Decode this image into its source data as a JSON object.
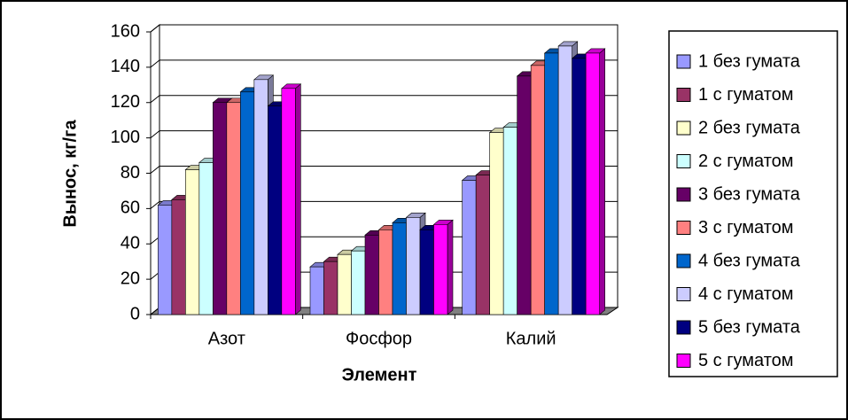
{
  "chart_data": {
    "type": "bar",
    "x_label": "Элемент",
    "y_label": "Вынос, кг/га",
    "categories": [
      "Азот",
      "Фосфор",
      "Калий"
    ],
    "series": [
      {
        "name": "1 без гумата",
        "color": "#9999ff",
        "values": [
          62,
          27,
          76
        ]
      },
      {
        "name": "1 с гуматом",
        "color": "#993366",
        "values": [
          65,
          30,
          79
        ]
      },
      {
        "name": "2 без гумата",
        "color": "#ffffcc",
        "values": [
          82,
          34,
          103
        ]
      },
      {
        "name": "2 с гуматом",
        "color": "#ccffff",
        "values": [
          86,
          36,
          106
        ]
      },
      {
        "name": "3 без гумата",
        "color": "#660066",
        "values": [
          120,
          45,
          135
        ]
      },
      {
        "name": "3 с гуматом",
        "color": "#ff8080",
        "values": [
          120,
          48,
          141
        ]
      },
      {
        "name": "4 без гумата",
        "color": "#0066cc",
        "values": [
          126,
          52,
          148
        ]
      },
      {
        "name": "4 с гуматом",
        "color": "#ccccff",
        "values": [
          133,
          55,
          152
        ]
      },
      {
        "name": "5 без гумата",
        "color": "#000080",
        "values": [
          118,
          48,
          145
        ]
      },
      {
        "name": "5 с гуматом",
        "color": "#ff00ff",
        "values": [
          128,
          51,
          148
        ]
      }
    ],
    "ylim": [
      0,
      160
    ],
    "yticks": [
      0,
      20,
      40,
      60,
      80,
      100,
      120,
      140,
      160
    ],
    "grid": true,
    "legend": "right"
  }
}
